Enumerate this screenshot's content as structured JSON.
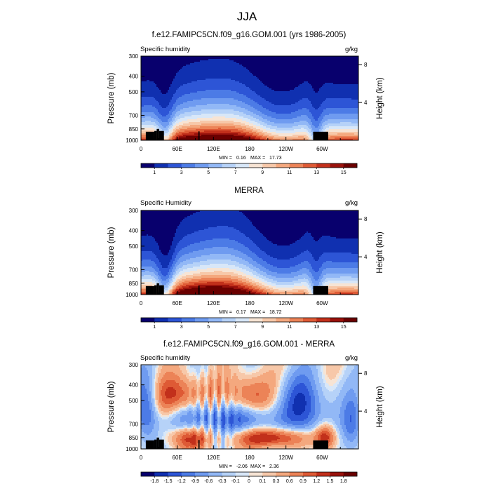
{
  "figure": {
    "title": "JJA"
  },
  "chart_data": [
    {
      "type": "heatmap",
      "title": "f.e12.FAMIPC5CN.f09_g16.GOM.001 (yrs 1986-2005)",
      "variable": "Specific humidity",
      "units": "g/kg",
      "ylabel": "Pressure (mb)",
      "ylabel_right": "Height (km)",
      "x_ticks": [
        "0",
        "60E",
        "120E",
        "180",
        "120W",
        "60W"
      ],
      "x_tick_values": [
        0,
        60,
        120,
        180,
        240,
        300
      ],
      "xlim": [
        0,
        360
      ],
      "y_ticks": [
        "300",
        "400",
        "500",
        "700",
        "850",
        "1000"
      ],
      "y_tick_values": [
        300,
        400,
        500,
        700,
        850,
        1000
      ],
      "ylim": [
        300,
        1000
      ],
      "y_scale": "log",
      "height_ticks": [
        "8",
        "4"
      ],
      "height_tick_values": [
        8,
        4
      ],
      "min_label": "MIN =",
      "min_value": "0.16",
      "max_label": "MAX =",
      "max_value": "17.73",
      "colorbar_labels": [
        "1",
        "3",
        "5",
        "7",
        "9",
        "11",
        "13",
        "15"
      ],
      "colorbar_colors": [
        "#08006d",
        "#1030b0",
        "#2d55d6",
        "#4c7be6",
        "#6f9bf0",
        "#92b8f6",
        "#b6d2f8",
        "#d8e7f8",
        "#f7e4d4",
        "#f7c8a9",
        "#f4a87e",
        "#ec8357",
        "#de5a35",
        "#c2301b",
        "#99120c",
        "#6a0000"
      ]
    },
    {
      "type": "heatmap",
      "title": "MERRA",
      "variable": "Specific Humidity",
      "units": "g/kg",
      "ylabel": "Pressure (mb)",
      "ylabel_right": "Height (km)",
      "x_ticks": [
        "0",
        "60E",
        "120E",
        "180",
        "120W",
        "60W"
      ],
      "x_tick_values": [
        0,
        60,
        120,
        180,
        240,
        300
      ],
      "xlim": [
        0,
        360
      ],
      "y_ticks": [
        "300",
        "400",
        "500",
        "700",
        "850",
        "1000"
      ],
      "y_tick_values": [
        300,
        400,
        500,
        700,
        850,
        1000
      ],
      "ylim": [
        300,
        1000
      ],
      "y_scale": "log",
      "height_ticks": [
        "8",
        "4"
      ],
      "height_tick_values": [
        8,
        4
      ],
      "min_label": "MIN =",
      "min_value": "0.17",
      "max_label": "MAX =",
      "max_value": "18.72",
      "colorbar_labels": [
        "1",
        "3",
        "5",
        "7",
        "9",
        "11",
        "13",
        "15"
      ],
      "colorbar_colors": [
        "#08006d",
        "#1030b0",
        "#2d55d6",
        "#4c7be6",
        "#6f9bf0",
        "#92b8f6",
        "#b6d2f8",
        "#d8e7f8",
        "#f7e4d4",
        "#f7c8a9",
        "#f4a87e",
        "#ec8357",
        "#de5a35",
        "#c2301b",
        "#99120c",
        "#6a0000"
      ]
    },
    {
      "type": "heatmap",
      "title": "f.e12.FAMIPC5CN.f09_g16.GOM.001 - MERRA",
      "variable": "Specific humidity",
      "units": "g/kg",
      "ylabel": "Pressure (mb)",
      "ylabel_right": "Height (km)",
      "x_ticks": [
        "0",
        "60E",
        "120E",
        "180",
        "120W",
        "60W"
      ],
      "x_tick_values": [
        0,
        60,
        120,
        180,
        240,
        300
      ],
      "xlim": [
        0,
        360
      ],
      "y_ticks": [
        "300",
        "400",
        "500",
        "700",
        "850",
        "1000"
      ],
      "y_tick_values": [
        300,
        400,
        500,
        700,
        850,
        1000
      ],
      "ylim": [
        300,
        1000
      ],
      "y_scale": "log",
      "height_ticks": [
        "8",
        "4"
      ],
      "height_tick_values": [
        8,
        4
      ],
      "min_label": "MIN =",
      "min_value": "-2.06",
      "max_label": "MAX =",
      "max_value": "2.36",
      "colorbar_labels": [
        "-1.8",
        "-1.5",
        "-1.2",
        "-0.9",
        "-0.6",
        "-0.3",
        "-0.1",
        "0",
        "0.1",
        "0.3",
        "0.6",
        "0.9",
        "1.2",
        "1.5",
        "1.8"
      ],
      "colorbar_colors": [
        "#08006d",
        "#1030b0",
        "#2d55d6",
        "#4c7be6",
        "#6f9bf0",
        "#92b8f6",
        "#b6d2f8",
        "#d8e7f8",
        "#f7e4d4",
        "#f7c8a9",
        "#f4a87e",
        "#ec8357",
        "#de5a35",
        "#c2301b",
        "#99120c",
        "#6a0000"
      ]
    }
  ]
}
